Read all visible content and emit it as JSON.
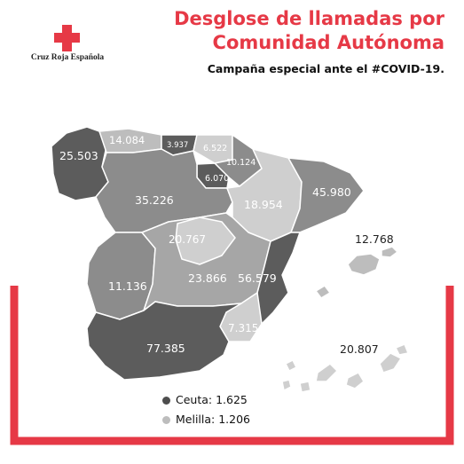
{
  "organization": "Cruz Roja Española",
  "title_line1": "Desglose de llamadas por",
  "title_line2": "Comunidad Autónoma",
  "subtitle": "Campaña especial ante el #COVID-19.",
  "colors": {
    "accent": "#e63946",
    "dark": "#5c5c5c",
    "mid": "#8c8c8c",
    "light": "#bdbdbd",
    "lighter": "#cfcfcf"
  },
  "regions": [
    {
      "name": "Galicia",
      "calls": "25.503",
      "shade": "dark"
    },
    {
      "name": "Asturias",
      "calls": "14.084",
      "shade": "light"
    },
    {
      "name": "Cantabria",
      "calls": "3.937",
      "shade": "dark"
    },
    {
      "name": "País Vasco",
      "calls": "6.522",
      "shade": "lighter"
    },
    {
      "name": "Navarra",
      "calls": "10.124",
      "shade": "mid"
    },
    {
      "name": "La Rioja",
      "calls": "6.070",
      "shade": "dark"
    },
    {
      "name": "Castilla y León",
      "calls": "35.226",
      "shade": "mid"
    },
    {
      "name": "Aragón",
      "calls": "18.954",
      "shade": "lighter"
    },
    {
      "name": "Cataluña",
      "calls": "45.980",
      "shade": "mid"
    },
    {
      "name": "Madrid",
      "calls": "20.767",
      "shade": "lighter"
    },
    {
      "name": "Extremadura",
      "calls": "11.136",
      "shade": "mid"
    },
    {
      "name": "Castilla-La Mancha",
      "calls": "23.866",
      "shade": "mid"
    },
    {
      "name": "Comunidad Valenciana",
      "calls": "56.579",
      "shade": "dark"
    },
    {
      "name": "Murcia",
      "calls": "7.315",
      "shade": "lighter"
    },
    {
      "name": "Andalucía",
      "calls": "77.385",
      "shade": "dark"
    },
    {
      "name": "Islas Baleares",
      "calls": "12.768",
      "shade": "light"
    },
    {
      "name": "Canarias",
      "calls": "20.807",
      "shade": "light"
    }
  ],
  "legend": [
    {
      "label": "Ceuta: 1.625",
      "color": "#4d4d4d"
    },
    {
      "label": "Melilla: 1.206",
      "color": "#bdbdbd"
    }
  ]
}
